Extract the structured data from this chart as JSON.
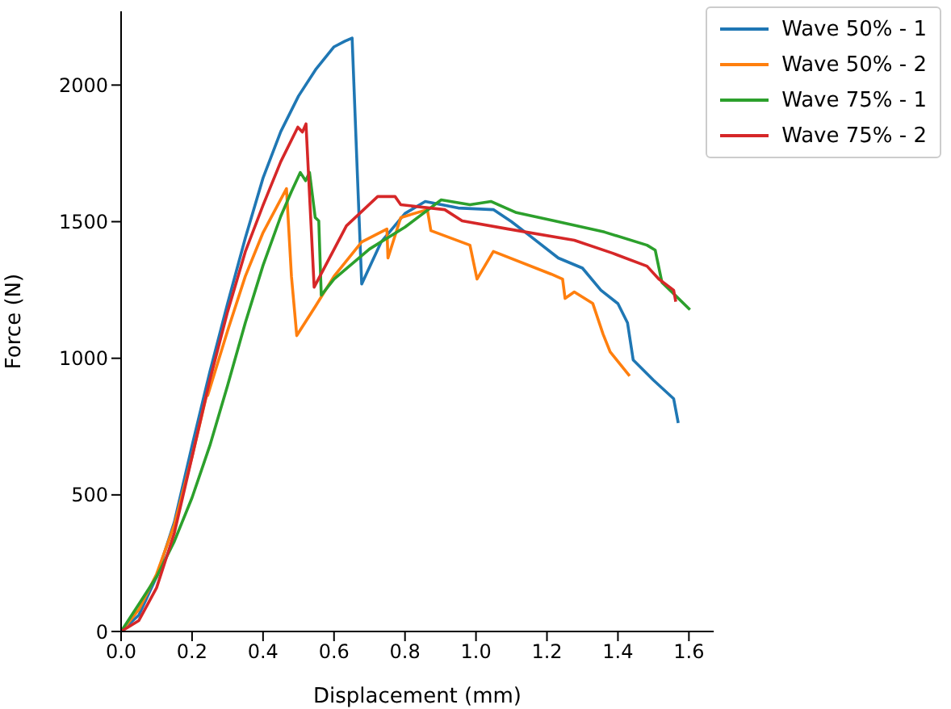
{
  "chart_data": {
    "type": "line",
    "xlabel": "Displacement (mm)",
    "ylabel": "Force (N)",
    "xlim": [
      0,
      1.67
    ],
    "ylim": [
      0,
      2270
    ],
    "xticks": [
      {
        "value": 0,
        "label": "0.0"
      },
      0.2,
      0.4,
      0.6,
      0.8,
      {
        "value": 1,
        "label": "1.0"
      },
      1.2,
      1.4,
      1.6
    ],
    "yticks": [
      0,
      500,
      1000,
      1500,
      2000
    ],
    "grid": false,
    "legend": "top right",
    "series": [
      {
        "name": "Wave 50% - 1",
        "color": "#1f77b4",
        "x": [
          0,
          0.05,
          0.1,
          0.15,
          0.2,
          0.25,
          0.3,
          0.35,
          0.4,
          0.45,
          0.5,
          0.55,
          0.6,
          0.63,
          0.651,
          0.665,
          0.678,
          0.733,
          0.8,
          0.857,
          0.95,
          1.049,
          1.1,
          1.15,
          1.232,
          1.3,
          1.352,
          1.4,
          1.427,
          1.443,
          1.5,
          1.557,
          1.57
        ],
        "values": [
          0,
          60,
          200,
          400,
          680,
          950,
          1200,
          1440,
          1660,
          1830,
          1960,
          2060,
          2140,
          2160,
          2172,
          1700,
          1272,
          1426,
          1530,
          1574,
          1550,
          1544,
          1500,
          1450,
          1367,
          1330,
          1249,
          1200,
          1130,
          994,
          920,
          852,
          763
        ]
      },
      {
        "name": "Wave 50% - 2",
        "color": "#ff7f0e",
        "x": [
          0,
          0.05,
          0.1,
          0.15,
          0.2,
          0.24,
          0.244,
          0.3,
          0.35,
          0.4,
          0.466,
          0.48,
          0.495,
          0.547,
          0.6,
          0.678,
          0.749,
          0.752,
          0.788,
          0.863,
          0.873,
          0.983,
          1.003,
          1.049,
          1.212,
          1.244,
          1.251,
          1.277,
          1.329,
          1.358,
          1.378,
          1.433
        ],
        "values": [
          0,
          80,
          210,
          390,
          640,
          860,
          864,
          1100,
          1300,
          1460,
          1621,
          1300,
          1083,
          1189,
          1300,
          1426,
          1473,
          1367,
          1515,
          1544,
          1467,
          1414,
          1290,
          1391,
          1308,
          1290,
          1219,
          1243,
          1201,
          1089,
          1024,
          935
        ]
      },
      {
        "name": "Wave 75% - 1",
        "color": "#2ca02c",
        "x": [
          0,
          0.05,
          0.1,
          0.15,
          0.2,
          0.25,
          0.3,
          0.35,
          0.4,
          0.45,
          0.48,
          0.505,
          0.52,
          0.531,
          0.547,
          0.557,
          0.564,
          0.6,
          0.7,
          0.8,
          0.902,
          0.983,
          1.042,
          1.114,
          1.221,
          1.362,
          1.482,
          1.505,
          1.524,
          1.603
        ],
        "values": [
          0,
          100,
          200,
          330,
          490,
          680,
          900,
          1130,
          1340,
          1520,
          1610,
          1680,
          1650,
          1680,
          1515,
          1503,
          1231,
          1290,
          1400,
          1480,
          1580,
          1562,
          1574,
          1533,
          1503,
          1462,
          1414,
          1396,
          1278,
          1178
        ]
      },
      {
        "name": "Wave 75% - 2",
        "color": "#d62728",
        "x": [
          0,
          0.05,
          0.1,
          0.15,
          0.2,
          0.25,
          0.3,
          0.35,
          0.4,
          0.45,
          0.498,
          0.511,
          0.521,
          0.544,
          0.635,
          0.723,
          0.772,
          0.788,
          0.912,
          0.961,
          1.091,
          1.277,
          1.384,
          1.482,
          1.515,
          1.557,
          1.563
        ],
        "values": [
          0,
          40,
          160,
          360,
          640,
          920,
          1170,
          1390,
          1560,
          1720,
          1846,
          1828,
          1858,
          1260,
          1485,
          1592,
          1592,
          1562,
          1544,
          1503,
          1473,
          1432,
          1385,
          1337,
          1290,
          1249,
          1207
        ]
      }
    ]
  }
}
